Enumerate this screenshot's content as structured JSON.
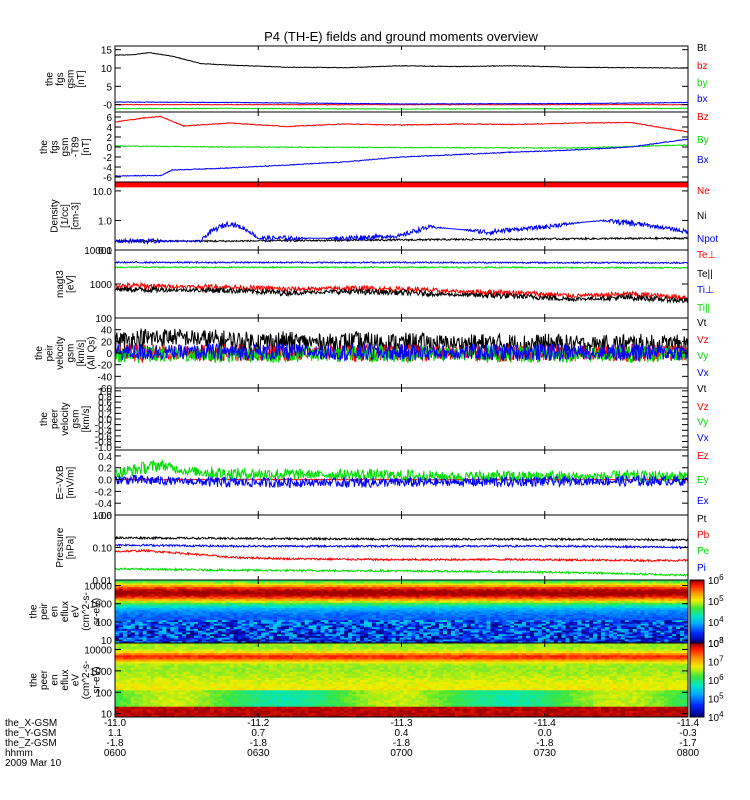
{
  "colors": {
    "black": "#000000",
    "red": "#ff0000",
    "green": "#00dd00",
    "blue": "#0000ff"
  },
  "chart_data": {
    "type": "line",
    "title": "P4 (TH-E) fields and ground moments overview",
    "panels": [
      {
        "id": "fgs-gsm",
        "ylabel": [
          "the",
          "fgs",
          "gsm",
          "[nT]"
        ],
        "yscale": "linear",
        "ylim": [
          -2,
          16
        ],
        "yticks": [
          0,
          5,
          10,
          15
        ],
        "yticklabels": [
          "-0",
          "5",
          "10",
          "15"
        ],
        "series": [
          {
            "name": "Bt",
            "color": "#000000",
            "x": [
              0,
              0.03,
              0.06,
              0.1,
              0.15,
              0.2,
              0.3,
              0.4,
              0.5,
              0.6,
              0.7,
              0.8,
              0.9,
              1
            ],
            "y": [
              13.5,
              13.6,
              14.2,
              13.2,
              11.2,
              10.8,
              10.2,
              10.1,
              10.6,
              10.4,
              10.6,
              10.2,
              10.1,
              10.0
            ]
          },
          {
            "name": "bz",
            "color": "#ff0000",
            "x": [
              0,
              0.5,
              1
            ],
            "y": [
              0,
              0,
              0
            ]
          },
          {
            "name": "by",
            "color": "#00dd00",
            "x": [
              0,
              0.2,
              0.5,
              0.8,
              1
            ],
            "y": [
              -1.1,
              -1.0,
              -1.2,
              -1.1,
              -1.0
            ]
          },
          {
            "name": "bx",
            "color": "#0000ff",
            "x": [
              0,
              0.2,
              0.5,
              0.8,
              0.95,
              1
            ],
            "y": [
              0.7,
              0.6,
              0.2,
              0.3,
              0.5,
              0.6
            ]
          }
        ]
      },
      {
        "id": "fgs-gsm-t89",
        "ylabel": [
          "the",
          "fgs",
          "gsm",
          "-T89",
          "[nT]"
        ],
        "yscale": "linear",
        "ylim": [
          -7,
          7
        ],
        "yticks": [
          -6,
          -4,
          -2,
          0,
          2,
          4,
          6
        ],
        "yticklabels": [
          "-6",
          "-4",
          "-2",
          "0",
          "2",
          "4",
          "6"
        ],
        "series": [
          {
            "name": "Bz",
            "color": "#ff0000",
            "x": [
              0,
              0.05,
              0.08,
              0.12,
              0.2,
              0.3,
              0.4,
              0.5,
              0.6,
              0.7,
              0.8,
              0.9,
              1
            ],
            "y": [
              5.0,
              5.8,
              6.1,
              4.2,
              4.8,
              4.1,
              4.6,
              4.4,
              4.6,
              4.5,
              4.8,
              4.9,
              3.0
            ]
          },
          {
            "name": "By",
            "color": "#00dd00",
            "x": [
              0,
              0.2,
              0.5,
              0.8,
              1
            ],
            "y": [
              0.2,
              0.0,
              -0.1,
              -0.2,
              0.4
            ]
          },
          {
            "name": "Bx",
            "color": "#0000ff",
            "x": [
              0,
              0.08,
              0.1,
              0.2,
              0.3,
              0.4,
              0.45,
              0.5,
              0.6,
              0.7,
              0.8,
              0.9,
              0.95,
              1
            ],
            "y": [
              -5.8,
              -5.7,
              -4.6,
              -4.2,
              -3.6,
              -3.0,
              -2.5,
              -2.0,
              -1.5,
              -1.0,
              -0.6,
              0.0,
              0.8,
              1.6
            ]
          }
        ]
      },
      {
        "id": "density",
        "ylabel": [
          "Density",
          "[1/cc]",
          "[cm-3]"
        ],
        "yscale": "log",
        "ylim": [
          0.1,
          20
        ],
        "yticks": [
          0.1,
          1.0,
          10.0
        ],
        "yticklabels": [
          "0.1",
          "1.0",
          "10.0"
        ],
        "series": [
          {
            "name": "Ne",
            "color": "#ff0000",
            "x": [
              0,
              0.5,
              1
            ],
            "y": [
              16,
              16,
              16
            ]
          },
          {
            "name": "Ni",
            "color": "#000000",
            "x": [
              0,
              0.2,
              0.5,
              0.8,
              1
            ],
            "y": [
              0.2,
              0.2,
              0.22,
              0.24,
              0.25
            ]
          },
          {
            "name": "Npot",
            "color": "#0000ff",
            "x": [
              0,
              0.15,
              0.2,
              0.25,
              0.4,
              0.5,
              0.55,
              0.65,
              0.75,
              0.85,
              1
            ],
            "y": [
              0.2,
              0.2,
              0.8,
              0.25,
              0.25,
              0.3,
              0.6,
              0.4,
              0.6,
              1.0,
              0.4
            ]
          }
        ]
      },
      {
        "id": "magt3",
        "ylabel": [
          "magt3",
          "[eV]"
        ],
        "yscale": "log",
        "ylim": [
          100,
          10000
        ],
        "yticks": [
          100,
          1000,
          10000
        ],
        "yticklabels": [
          "100",
          "1000",
          "10000"
        ],
        "series": [
          {
            "name": "Te⊥",
            "color": "#ff0000",
            "x": [
              0,
              0.2,
              0.3,
              0.4,
              0.5,
              0.6,
              0.7,
              0.8,
              0.9,
              1
            ],
            "y": [
              900,
              800,
              700,
              750,
              700,
              600,
              550,
              450,
              500,
              400
            ]
          },
          {
            "name": "Te||",
            "color": "#000000",
            "x": [
              0,
              0.2,
              0.3,
              0.4,
              0.5,
              0.6,
              0.7,
              0.8,
              0.9,
              1
            ],
            "y": [
              700,
              650,
              550,
              600,
              560,
              480,
              440,
              360,
              400,
              320
            ]
          },
          {
            "name": "Ti⊥",
            "color": "#0000ff",
            "x": [
              0,
              0.5,
              1
            ],
            "y": [
              4300,
              4300,
              4200
            ]
          },
          {
            "name": "Ti||",
            "color": "#00dd00",
            "x": [
              0,
              0.5,
              1
            ],
            "y": [
              3100,
              3100,
              3000
            ]
          }
        ]
      },
      {
        "id": "peir-velocity",
        "ylabel": [
          "the",
          "peir",
          "velocity",
          "gsm",
          "[km/s]",
          "(All Qs)"
        ],
        "yscale": "linear",
        "ylim": [
          -60,
          60
        ],
        "yticks": [
          -60,
          -40,
          -20,
          0,
          20,
          40
        ],
        "yticklabels": [
          "-60",
          "-40",
          "-20",
          "0",
          "20",
          "40"
        ],
        "series": [
          {
            "name": "Vt",
            "color": "#000000",
            "x": [
              0,
              0.1,
              0.2,
              0.4,
              0.6,
              0.8,
              1
            ],
            "y": [
              20,
              28,
              20,
              18,
              16,
              15,
              14
            ]
          },
          {
            "name": "Vz",
            "color": "#ff0000",
            "x": [
              0,
              0.5,
              1
            ],
            "y": [
              0,
              0,
              0
            ]
          },
          {
            "name": "Vy",
            "color": "#00dd00",
            "x": [
              0,
              0.5,
              1
            ],
            "y": [
              -3,
              -2,
              -2
            ]
          },
          {
            "name": "Vx",
            "color": "#0000ff",
            "x": [
              0,
              0.5,
              1
            ],
            "y": [
              2,
              1,
              1
            ]
          }
        ]
      },
      {
        "id": "peer-velocity",
        "ylabel": [
          "the",
          "peer",
          "velocity",
          "gsm",
          "[km/s]"
        ],
        "yscale": "linear",
        "ylim": [
          -1.1,
          1.1
        ],
        "yticks": [
          -1.0,
          -0.8,
          -0.6,
          -0.4,
          -0.2,
          0.0,
          0.2,
          0.4,
          0.6,
          0.8,
          1.0
        ],
        "yticklabels": [
          "-1.0",
          "-0.8",
          "-0.6",
          "-0.4",
          "-0.2",
          "0.0",
          "0.2",
          "0.4",
          "0.6",
          "0.8",
          "1.0"
        ],
        "series": [
          {
            "name": "Vt",
            "color": "#000000",
            "x": [],
            "y": []
          },
          {
            "name": "Vz",
            "color": "#ff0000",
            "x": [],
            "y": []
          },
          {
            "name": "Vy",
            "color": "#00dd00",
            "x": [],
            "y": []
          },
          {
            "name": "Vx",
            "color": "#0000ff",
            "x": [],
            "y": []
          }
        ]
      },
      {
        "id": "e-vxb",
        "ylabel": [
          "E=-VxB",
          "[mV/m]"
        ],
        "yscale": "linear",
        "ylim": [
          -0.6,
          0.5
        ],
        "yticks": [
          -0.6,
          -0.4,
          -0.2,
          0.0,
          0.2,
          0.4
        ],
        "yticklabels": [
          "-0.6",
          "-0.4",
          "-0.2",
          "0.0",
          "0.2",
          "0.4"
        ],
        "series": [
          {
            "name": "Ez",
            "color": "#ff0000",
            "x": [
              0,
              0.5,
              1
            ],
            "y": [
              0,
              0,
              0
            ]
          },
          {
            "name": "Ey",
            "color": "#00dd00",
            "x": [
              0,
              0.08,
              0.12,
              0.2,
              0.4,
              0.6,
              0.8,
              1
            ],
            "y": [
              0.1,
              0.25,
              0.15,
              0.1,
              0.08,
              0.05,
              0.05,
              0.05
            ]
          },
          {
            "name": "Ex",
            "color": "#0000ff",
            "x": [
              0,
              0.2,
              0.5,
              0.8,
              1
            ],
            "y": [
              0.0,
              -0.05,
              -0.05,
              -0.03,
              -0.02
            ]
          }
        ]
      },
      {
        "id": "pressure",
        "ylabel": [
          "Pressure",
          "[nPa]"
        ],
        "yscale": "log",
        "ylim": [
          0.01,
          1.0
        ],
        "yticks": [
          0.01,
          0.1,
          1.0
        ],
        "yticklabels": [
          "0.01",
          "0.10",
          "1.00"
        ],
        "series": [
          {
            "name": "Pt",
            "color": "#000000",
            "x": [
              0,
              0.2,
              0.5,
              0.8,
              1
            ],
            "y": [
              0.2,
              0.19,
              0.18,
              0.18,
              0.17
            ]
          },
          {
            "name": "Pb",
            "color": "#ff0000",
            "x": [
              0,
              0.05,
              0.2,
              0.3,
              0.5,
              0.7,
              0.9,
              1
            ],
            "y": [
              0.075,
              0.08,
              0.05,
              0.045,
              0.042,
              0.043,
              0.04,
              0.04
            ]
          },
          {
            "name": "Pe",
            "color": "#00dd00",
            "x": [
              0,
              0.2,
              0.5,
              0.8,
              1
            ],
            "y": [
              0.022,
              0.02,
              0.019,
              0.017,
              0.014
            ]
          },
          {
            "name": "Pi",
            "color": "#0000ff",
            "x": [
              0,
              0.2,
              0.5,
              0.8,
              1
            ],
            "y": [
              0.12,
              0.11,
              0.11,
              0.11,
              0.1
            ]
          }
        ]
      },
      {
        "id": "peir-en-eflux",
        "type": "heatmap",
        "ylabel": [
          "the",
          "peir",
          "en",
          "eflux",
          "eV",
          "(cm^2-s-",
          "sr-eV)"
        ],
        "yscale": "log",
        "ylim": [
          7,
          20000
        ],
        "yticks": [
          10,
          100,
          1000,
          10000
        ],
        "yticklabels": [
          "10",
          "100",
          "1000",
          "10000"
        ],
        "colorbar": {
          "min_exp": 3,
          "max_exp": 6,
          "ticks": [
            3,
            4,
            5,
            6
          ]
        }
      },
      {
        "id": "peer-en-eflux",
        "type": "heatmap",
        "ylabel": [
          "the",
          "peer",
          "en",
          "eflux",
          "eV",
          "(cm^2-s-",
          "sr-eV)"
        ],
        "yscale": "log",
        "ylim": [
          7,
          20000
        ],
        "yticks": [
          10,
          100,
          1000,
          10000
        ],
        "yticklabels": [
          "10",
          "100",
          "1000",
          "10000"
        ],
        "colorbar": {
          "min_exp": 4,
          "max_exp": 8,
          "ticks": [
            4,
            5,
            6,
            7,
            8
          ]
        }
      }
    ],
    "x_ticks": [
      {
        "x": 0,
        "hhmm": "0600",
        "xgsm": "-11.0",
        "ygsm": "1.1",
        "zgsm": "-1.8"
      },
      {
        "x": 0.25,
        "hhmm": "0630",
        "xgsm": "-11.2",
        "ygsm": "0.7",
        "zgsm": "-1.8"
      },
      {
        "x": 0.5,
        "hhmm": "0700",
        "xgsm": "-11.3",
        "ygsm": "0.4",
        "zgsm": "-1.8"
      },
      {
        "x": 0.75,
        "hhmm": "0730",
        "xgsm": "-11.4",
        "ygsm": "0.0",
        "zgsm": "-1.8"
      },
      {
        "x": 1,
        "hhmm": "0800",
        "xgsm": "-11.4",
        "ygsm": "-0.3",
        "zgsm": "-1.7"
      }
    ],
    "footer_labels": [
      "the_X-GSM",
      "the_Y-GSM",
      "the_Z-GSM",
      "hhmm",
      "2009 Mar 10"
    ]
  }
}
